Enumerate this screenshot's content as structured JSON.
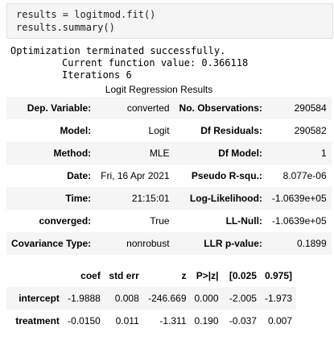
{
  "code": {
    "line1": "results = logitmod.fit()",
    "line2": "results.summary()"
  },
  "output": {
    "line1": "Optimization terminated successfully.",
    "line2": "Current function value: 0.366118",
    "line3": "Iterations 6"
  },
  "summary": {
    "caption": "Logit Regression Results",
    "rows": [
      {
        "l1": "Dep. Variable:",
        "v1": "converted",
        "l2": "No. Observations:",
        "v2": "290584"
      },
      {
        "l1": "Model:",
        "v1": "Logit",
        "l2": "Df Residuals:",
        "v2": "290582"
      },
      {
        "l1": "Method:",
        "v1": "MLE",
        "l2": "Df Model:",
        "v2": "1"
      },
      {
        "l1": "Date:",
        "v1": "Fri, 16 Apr 2021",
        "l2": "Pseudo R-squ.:",
        "v2": "8.077e-06"
      },
      {
        "l1": "Time:",
        "v1": "21:15:01",
        "l2": "Log-Likelihood:",
        "v2": "-1.0639e+05"
      },
      {
        "l1": "converged:",
        "v1": "True",
        "l2": "LL-Null:",
        "v2": "-1.0639e+05"
      },
      {
        "l1": "Covariance Type:",
        "v1": "nonrobust",
        "l2": "LLR p-value:",
        "v2": "0.1899"
      }
    ]
  },
  "coef_table": {
    "headers": [
      "",
      "coef",
      "std err",
      "z",
      "P>|z|",
      "[0.025",
      "0.975]"
    ],
    "rows": [
      [
        "intercept",
        "-1.9888",
        "0.008",
        "-246.669",
        "0.000",
        "-2.005",
        "-1.973"
      ],
      [
        "treatment",
        "-0.0150",
        "0.011",
        "-1.311",
        "0.190",
        "-0.037",
        "0.007"
      ]
    ]
  }
}
